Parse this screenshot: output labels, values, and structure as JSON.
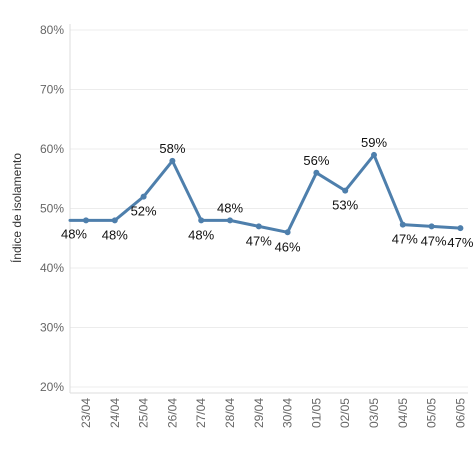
{
  "chart_data": {
    "type": "line",
    "ylabel": "Índice de isolamento",
    "xlabel": "",
    "title": "",
    "ylim": [
      0.19,
      0.81
    ],
    "yticks": [
      0.2,
      0.3,
      0.4,
      0.5,
      0.6,
      0.7,
      0.8
    ],
    "ytick_labels": [
      "20%",
      "30%",
      "40%",
      "50%",
      "60%",
      "70%",
      "80%"
    ],
    "grid": true,
    "categories": [
      "23/04",
      "24/04",
      "25/04",
      "26/04",
      "27/04",
      "28/04",
      "29/04",
      "30/04",
      "01/05",
      "02/05",
      "03/05",
      "04/05",
      "05/05",
      "06/05"
    ],
    "series": [
      {
        "color": "#4e7fac",
        "values": [
          0.48,
          0.48,
          0.52,
          0.58,
          0.48,
          0.48,
          0.47,
          0.46,
          0.56,
          0.53,
          0.59,
          0.473,
          0.47,
          0.467
        ],
        "labels": [
          "48%",
          "48%",
          "52%",
          "58%",
          "48%",
          "48%",
          "47%",
          "46%",
          "56%",
          "53%",
          "59%",
          "47%",
          "47%",
          "47%"
        ]
      }
    ],
    "leading_value": 0.48,
    "leading_label": "48%"
  }
}
